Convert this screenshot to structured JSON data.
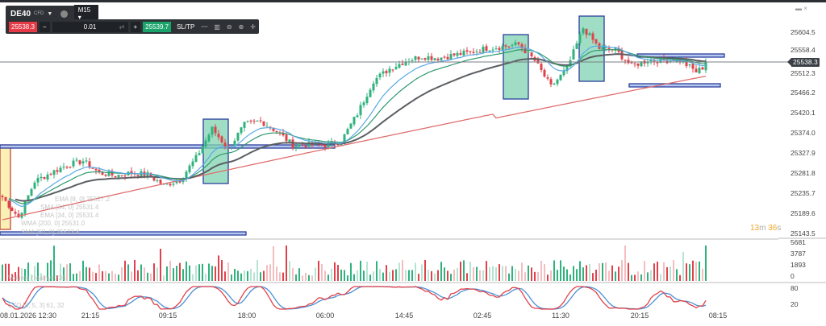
{
  "toolbar": {
    "symbol": "DE40",
    "symbol_type": "CFD",
    "timeframe": "M15",
    "sell_price": "25538.3",
    "buy_price": "25539.7",
    "quantity": "0.01",
    "minus": "−",
    "plus": "+",
    "sltp": "SL/TP"
  },
  "window_controls": {
    "minimize": "▬",
    "close": "×"
  },
  "price_axis": [
    "25604.5",
    "25558.4",
    "25512.3",
    "25466.2",
    "25420.1",
    "25374.0",
    "25327.9",
    "25281.8",
    "25235.7",
    "25189.6",
    "25143.5"
  ],
  "current_price": "25538.3",
  "timer": {
    "min": "13",
    "min_unit": "m",
    "sec": "36",
    "sec_unit": "s"
  },
  "volume_axis": [
    "5681",
    "3787",
    "1893",
    "0"
  ],
  "stoch_axis": [
    "80",
    "20"
  ],
  "time_axis": [
    "08.01.2026 12:30",
    "21:15",
    "09:15",
    "18:00",
    "06:00",
    "14:45",
    "02:45",
    "11:30",
    "20:15",
    "08:15"
  ],
  "legend": {
    "ema1": "EMA [8, 0] 25527.2",
    "ma2": "SMA [34, 0] 25531.4",
    "ma3": "EMA [34, 0] 25531.4",
    "wma": "WMA [200, 0] 25531.0",
    "ma5": "SMA [50, 0] 25523.8",
    "volume": "Volume (realny) 236",
    "stoch": "STO [8, 5, 3] 61, 32"
  },
  "colors": {
    "up": "#2fb27d",
    "down": "#e0424b",
    "wma": "#e06c6c",
    "ema_fast": "#5aa9e6",
    "ema_mid": "#2f9a6e",
    "sma_slow": "#5b5f63",
    "box_fill": "#7fd3b0",
    "box_border": "#2b3f9e"
  },
  "chart_data": {
    "type": "candlestick",
    "y_range": [
      25143.5,
      25604.5
    ],
    "close_path": [
      25231,
      25185,
      25267,
      25286,
      25304,
      25313,
      25286,
      25280,
      25286,
      25282,
      25258,
      25270,
      25320,
      25386,
      25340,
      25395,
      25404,
      25380,
      25349,
      25349,
      25349,
      25358,
      25420,
      25495,
      25522,
      25540,
      25550,
      25546,
      25553,
      25559,
      25568,
      25572,
      25577,
      25540,
      25481,
      25522,
      25614,
      25568,
      25564,
      25528,
      25541,
      25541,
      25541,
      25515,
      25538
    ],
    "last_price": 25538.3
  }
}
